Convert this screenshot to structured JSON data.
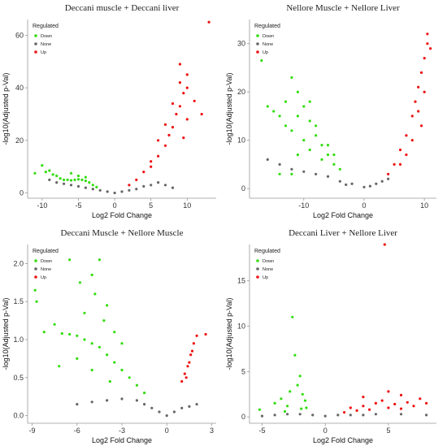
{
  "chart_data": [
    {
      "type": "scatter",
      "title": "Deccani muscle + Deccani liver",
      "xlabel": "Log2 Fold Change",
      "ylabel": "-log10(Adjusted p-Val)",
      "xlim": [
        -12,
        14
      ],
      "ylim": [
        -2,
        66
      ],
      "xticks": [
        -10,
        -5,
        0,
        5,
        10
      ],
      "yticks": [
        0,
        20,
        40,
        60
      ],
      "legend_title": "Regulated",
      "legend_position": "top-left",
      "series": [
        {
          "name": "Down",
          "color": "#33dd11",
          "values": [
            [
              -11,
              7.5
            ],
            [
              -10,
              10.5
            ],
            [
              -9.5,
              8
            ],
            [
              -9,
              8.5
            ],
            [
              -8.5,
              7
            ],
            [
              -8,
              6.5
            ],
            [
              -7.5,
              5.5
            ],
            [
              -7,
              5
            ],
            [
              -6.5,
              5
            ],
            [
              -6,
              4.8
            ],
            [
              -5.5,
              5
            ],
            [
              -5,
              5.2
            ],
            [
              -4.5,
              5
            ],
            [
              -4,
              4.6
            ],
            [
              -3.5,
              4
            ],
            [
              -3,
              3
            ],
            [
              -2.5,
              2.2
            ],
            [
              -6,
              7.5
            ],
            [
              -5,
              6.5
            ],
            [
              -4,
              6
            ]
          ]
        },
        {
          "name": "None",
          "color": "#666666",
          "values": [
            [
              -9,
              5
            ],
            [
              -8,
              4
            ],
            [
              -7,
              3.5
            ],
            [
              -6,
              3
            ],
            [
              -5,
              2.5
            ],
            [
              -4,
              2
            ],
            [
              -3,
              1.5
            ],
            [
              -2,
              1
            ],
            [
              -1,
              0.5
            ],
            [
              0,
              0
            ],
            [
              1,
              0.5
            ],
            [
              2,
              1
            ],
            [
              3,
              1.5
            ],
            [
              4,
              2.5
            ],
            [
              5,
              3
            ],
            [
              6,
              4
            ],
            [
              7,
              3
            ],
            [
              8,
              2
            ]
          ]
        },
        {
          "name": "Up",
          "color": "#ee1111",
          "values": [
            [
              2,
              3
            ],
            [
              3,
              5
            ],
            [
              4,
              8
            ],
            [
              5,
              12
            ],
            [
              6,
              14
            ],
            [
              7,
              18
            ],
            [
              7.5,
              22
            ],
            [
              8,
              25
            ],
            [
              8.5,
              30
            ],
            [
              9,
              33
            ],
            [
              9.5,
              38
            ],
            [
              9,
              42
            ],
            [
              10,
              40
            ],
            [
              10,
              45
            ],
            [
              9,
              49
            ],
            [
              11,
              35
            ],
            [
              12,
              30
            ],
            [
              13,
              65
            ],
            [
              7,
              26
            ],
            [
              6,
              20
            ],
            [
              8,
              34
            ],
            [
              5,
              10
            ],
            [
              10,
              28
            ],
            [
              9.5,
              21
            ]
          ]
        }
      ]
    },
    {
      "type": "scatter",
      "title": "Nellore Muscle + Nellore Liver",
      "xlabel": "Log2 Fold Change",
      "ylabel": "-log10(Adjusted p-Val)",
      "xlim": [
        -19,
        12
      ],
      "ylim": [
        -2,
        35
      ],
      "xticks": [
        -10,
        0,
        10
      ],
      "yticks": [
        0,
        10,
        20,
        30
      ],
      "legend_title": "Regulated",
      "legend_position": "top-left",
      "series": [
        {
          "name": "Down",
          "color": "#33dd11",
          "values": [
            [
              -17,
              26.5
            ],
            [
              -16,
              17
            ],
            [
              -15,
              16
            ],
            [
              -14,
              15
            ],
            [
              -13,
              13
            ],
            [
              -12,
              23
            ],
            [
              -11,
              20
            ],
            [
              -10,
              17
            ],
            [
              -9,
              14
            ],
            [
              -8,
              11
            ],
            [
              -7,
              9
            ],
            [
              -6,
              7
            ],
            [
              -5,
              5
            ],
            [
              -4,
              4
            ],
            [
              -14,
              3
            ],
            [
              -12,
              3
            ],
            [
              -11,
              15
            ],
            [
              -9,
              18
            ],
            [
              -10,
              10
            ],
            [
              -8,
              13
            ],
            [
              -7,
              6
            ],
            [
              -12,
              12
            ],
            [
              -13,
              18
            ],
            [
              -11,
              7
            ],
            [
              -6,
              9
            ],
            [
              -9,
              8
            ],
            [
              -5,
              7
            ]
          ]
        },
        {
          "name": "None",
          "color": "#666666",
          "values": [
            [
              -16,
              6
            ],
            [
              -14,
              5
            ],
            [
              -12,
              4
            ],
            [
              -10,
              3.5
            ],
            [
              -8,
              3
            ],
            [
              -6,
              2.5
            ],
            [
              -4,
              1.5
            ],
            [
              -2,
              1
            ],
            [
              0,
              0.3
            ],
            [
              2,
              1
            ],
            [
              4,
              2
            ],
            [
              -3,
              0.8
            ],
            [
              1,
              0.5
            ],
            [
              3,
              1.5
            ]
          ]
        },
        {
          "name": "Up",
          "color": "#ee1111",
          "values": [
            [
              4,
              3
            ],
            [
              5,
              5
            ],
            [
              6,
              8
            ],
            [
              7,
              11
            ],
            [
              8,
              15
            ],
            [
              8.5,
              18
            ],
            [
              9,
              21
            ],
            [
              9.5,
              24
            ],
            [
              10,
              27
            ],
            [
              10.5,
              30
            ],
            [
              10.5,
              32
            ],
            [
              11,
              29
            ],
            [
              9,
              16
            ],
            [
              7,
              7
            ],
            [
              8,
              10
            ],
            [
              6,
              5
            ],
            [
              10,
              20
            ],
            [
              9.5,
              13
            ]
          ]
        }
      ]
    },
    {
      "type": "scatter",
      "title": "Deccani Muscle + Nellore Muscle",
      "xlabel": "Log2 Fold Change",
      "ylabel": "-log10(Adjusted p-Val)",
      "xlim": [
        -9.3,
        3.3
      ],
      "ylim": [
        -0.1,
        2.25
      ],
      "xticks": [
        -9,
        -6,
        -3,
        0,
        3
      ],
      "yticks": [
        0.0,
        0.5,
        1.0,
        1.5,
        2.0
      ],
      "legend_title": "Regulated",
      "legend_position": "top-left",
      "series": [
        {
          "name": "Down",
          "color": "#33dd11",
          "values": [
            [
              -8.8,
              1.65
            ],
            [
              -8.7,
              1.5
            ],
            [
              -7.5,
              1.2
            ],
            [
              -7,
              1.08
            ],
            [
              -6.5,
              1.07
            ],
            [
              -6,
              1.05
            ],
            [
              -5.5,
              1.0
            ],
            [
              -5,
              0.95
            ],
            [
              -4.5,
              0.9
            ],
            [
              -4,
              0.8
            ],
            [
              -3.5,
              0.7
            ],
            [
              -3,
              0.6
            ],
            [
              -2.5,
              0.5
            ],
            [
              -2,
              0.4
            ],
            [
              -1.5,
              0.3
            ],
            [
              -6.5,
              2.05
            ],
            [
              -5.8,
              1.75
            ],
            [
              -5,
              1.85
            ],
            [
              -4.5,
              2.05
            ],
            [
              -4.8,
              1.6
            ],
            [
              -4,
              1.45
            ],
            [
              -5.5,
              1.35
            ],
            [
              -4.2,
              1.25
            ],
            [
              -3.5,
              1.1
            ],
            [
              -3,
              0.95
            ],
            [
              -6,
              0.75
            ],
            [
              -5,
              0.6
            ],
            [
              -7.2,
              0.65
            ],
            [
              -8.2,
              1.1
            ],
            [
              -3.8,
              0.45
            ]
          ]
        },
        {
          "name": "None",
          "color": "#666666",
          "values": [
            [
              -5,
              0.18
            ],
            [
              -4,
              0.2
            ],
            [
              -3,
              0.22
            ],
            [
              -2,
              0.2
            ],
            [
              -1.5,
              0.15
            ],
            [
              -1,
              0.1
            ],
            [
              -0.5,
              0.05
            ],
            [
              0,
              0.0
            ],
            [
              0.5,
              0.05
            ],
            [
              1,
              0.1
            ],
            [
              1.5,
              0.12
            ],
            [
              2,
              0.15
            ],
            [
              -6,
              0.15
            ]
          ]
        },
        {
          "name": "Up",
          "color": "#ee1111",
          "values": [
            [
              1.0,
              0.45
            ],
            [
              1.2,
              0.55
            ],
            [
              1.4,
              0.65
            ],
            [
              1.5,
              0.7
            ],
            [
              1.6,
              0.8
            ],
            [
              1.7,
              0.85
            ],
            [
              1.8,
              0.95
            ],
            [
              2.0,
              1.05
            ],
            [
              2.6,
              1.07
            ],
            [
              1.3,
              0.5
            ]
          ]
        }
      ]
    },
    {
      "type": "scatter",
      "title": "Deccani Liver + Nellore Liver",
      "xlabel": "Log2 Fold Change",
      "ylabel": "-log10(Adjusted p-Val)",
      "xlim": [
        -6,
        8.8
      ],
      "ylim": [
        -0.7,
        19
      ],
      "xticks": [
        -5,
        0,
        5
      ],
      "yticks": [
        0,
        5,
        10,
        15
      ],
      "legend_title": "Regulated",
      "legend_position": "top-left",
      "series": [
        {
          "name": "Down",
          "color": "#33dd11",
          "values": [
            [
              -5.2,
              0.8
            ],
            [
              -4,
              1.5
            ],
            [
              -3.5,
              2
            ],
            [
              -3,
              1.2
            ],
            [
              -2.6,
              11
            ],
            [
              -2.4,
              6.8
            ],
            [
              -2.2,
              3.5
            ],
            [
              -2,
              4.5
            ],
            [
              -1.8,
              2.5
            ],
            [
              -1.6,
              1.8
            ],
            [
              -1.5,
              1
            ],
            [
              -2.8,
              2.8
            ],
            [
              -3.2,
              0.6
            ],
            [
              -1.9,
              0.9
            ]
          ]
        },
        {
          "name": "None",
          "color": "#666666",
          "values": [
            [
              -4,
              0.2
            ],
            [
              -3,
              0.3
            ],
            [
              -2,
              0.3
            ],
            [
              -1,
              0.2
            ],
            [
              0,
              0.1
            ],
            [
              1,
              0.2
            ],
            [
              2,
              0.2
            ],
            [
              3,
              0.2
            ],
            [
              4,
              0.3
            ],
            [
              6,
              0.3
            ],
            [
              8,
              0.2
            ],
            [
              -5,
              0.1
            ]
          ]
        },
        {
          "name": "Up",
          "color": "#ee1111",
          "values": [
            [
              1.5,
              0.5
            ],
            [
              2,
              1
            ],
            [
              2.5,
              0.7
            ],
            [
              3,
              1.2
            ],
            [
              3.5,
              0.8
            ],
            [
              4,
              1.5
            ],
            [
              4.5,
              1.8
            ],
            [
              5,
              1
            ],
            [
              5.5,
              1.4
            ],
            [
              6,
              0.9
            ],
            [
              6.5,
              1.6
            ],
            [
              7,
              1.2
            ],
            [
              7.5,
              2
            ],
            [
              8,
              1.5
            ],
            [
              4.7,
              19
            ],
            [
              3,
              2.2
            ],
            [
              6,
              2.4
            ],
            [
              5,
              2.8
            ]
          ]
        }
      ]
    }
  ]
}
